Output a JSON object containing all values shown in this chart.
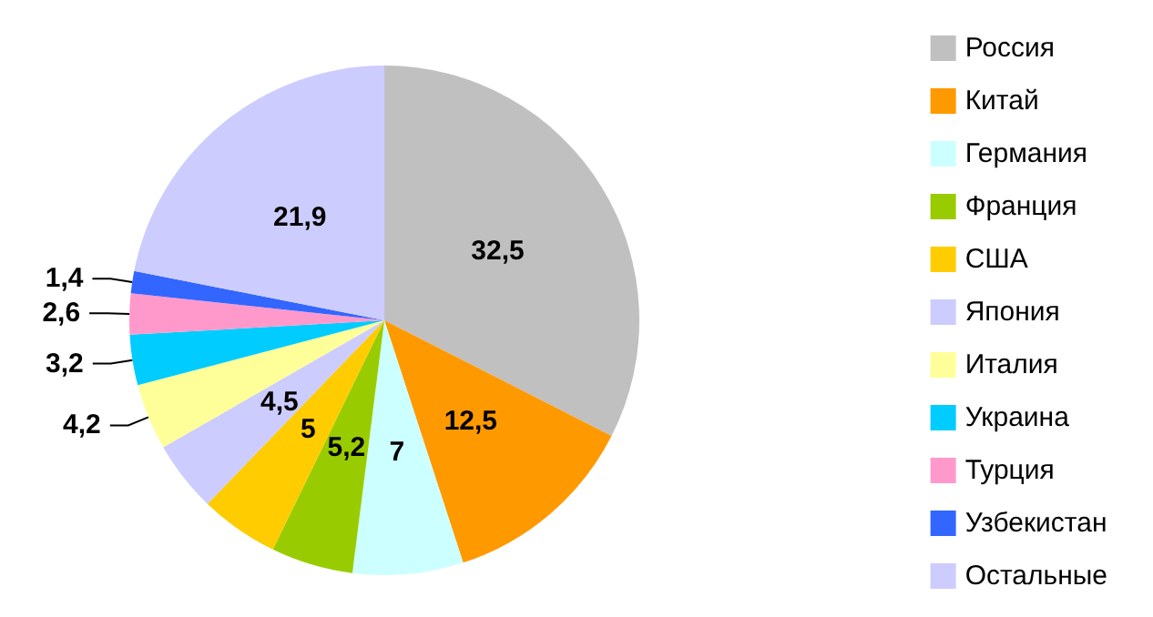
{
  "chart_data": {
    "type": "pie",
    "categories": [
      "Россия",
      "Китай",
      "Германия",
      "Франция",
      "США",
      "Япония",
      "Италия",
      "Украина",
      "Турция",
      "Узбекистан",
      "Остальные"
    ],
    "values": [
      32.5,
      12.5,
      7,
      5.2,
      5,
      4.5,
      4.2,
      3.2,
      2.6,
      1.4,
      21.9
    ],
    "colors": [
      "#c0c0c0",
      "#ff9900",
      "#ccffff",
      "#99cc00",
      "#ffcc00",
      "#ccccff",
      "#ffff99",
      "#00ccff",
      "#ff99cc",
      "#3366ff",
      "#ccccfe"
    ],
    "value_labels": [
      "32,5",
      "12,5",
      "7",
      "5,2",
      "5",
      "4,5",
      "4,2",
      "3,2",
      "2,6",
      "1,4",
      "21,9"
    ],
    "legend": "right"
  }
}
